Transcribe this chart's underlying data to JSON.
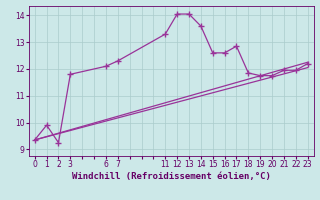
{
  "xlabel": "Windchill (Refroidissement éolien,°C)",
  "bg_color": "#cce8e8",
  "grid_color": "#aacccc",
  "line_color": "#993399",
  "xlim": [
    -0.5,
    23.5
  ],
  "ylim": [
    8.75,
    14.35
  ],
  "yticks": [
    9,
    10,
    11,
    12,
    13,
    14
  ],
  "xtick_labels": [
    "0",
    "1",
    "2",
    "3",
    "",
    "",
    "6",
    "7",
    "",
    "",
    "",
    "11",
    "12",
    "13",
    "14",
    "15",
    "16",
    "17",
    "18",
    "19",
    "20",
    "21",
    "22",
    "23"
  ],
  "line1_x": [
    0,
    1,
    2,
    3,
    6,
    7,
    11,
    12,
    13,
    14,
    15,
    16,
    17,
    18,
    19,
    20,
    21,
    22,
    23
  ],
  "line1_y": [
    9.35,
    9.9,
    9.25,
    11.8,
    12.1,
    12.3,
    13.3,
    14.05,
    14.05,
    13.6,
    12.6,
    12.6,
    12.85,
    11.85,
    11.75,
    11.75,
    11.95,
    11.95,
    12.2
  ],
  "line2_x": [
    0,
    23
  ],
  "line2_y": [
    9.35,
    12.05
  ],
  "line3_x": [
    0,
    23
  ],
  "line3_y": [
    9.35,
    12.25
  ],
  "font_color": "#660066",
  "tick_fontsize": 5.5,
  "label_fontsize": 6.5
}
